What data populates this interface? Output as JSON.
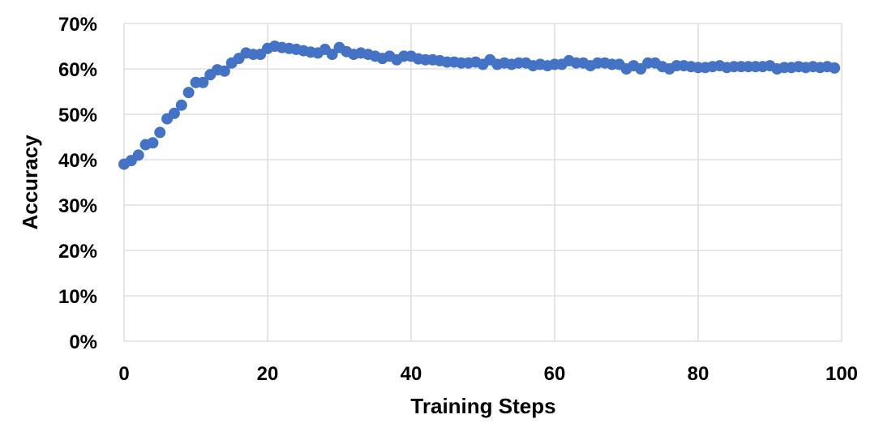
{
  "chart_data": {
    "type": "scatter",
    "xlabel": "Training Steps",
    "ylabel": "Accuracy",
    "xlim": [
      0,
      100
    ],
    "ylim": [
      0,
      0.7
    ],
    "x_ticks": [
      0,
      20,
      40,
      60,
      80,
      100
    ],
    "x_tick_labels": [
      "0",
      "20",
      "40",
      "60",
      "80",
      "100"
    ],
    "y_ticks": [
      0,
      0.1,
      0.2,
      0.3,
      0.4,
      0.5,
      0.6,
      0.7
    ],
    "y_tick_labels": [
      "0%",
      "10%",
      "20%",
      "30%",
      "40%",
      "50%",
      "60%",
      "70%"
    ],
    "grid": true,
    "marker_color": "#4472c4",
    "series": [
      {
        "x": [
          0,
          1,
          2,
          3,
          4,
          5,
          6,
          7,
          8,
          9,
          10,
          11,
          12,
          13,
          14,
          15,
          16,
          17,
          18,
          19,
          20,
          21,
          22,
          23,
          24,
          25,
          26,
          27,
          28,
          29,
          30,
          31,
          32,
          33,
          34,
          35,
          36,
          37,
          38,
          39,
          40,
          41,
          42,
          43,
          44,
          45,
          46,
          47,
          48,
          49,
          50,
          51,
          52,
          53,
          54,
          55,
          56,
          57,
          58,
          59,
          60,
          61,
          62,
          63,
          64,
          65,
          66,
          67,
          68,
          69,
          70,
          71,
          72,
          73,
          74,
          75,
          76,
          77,
          78,
          79,
          80,
          81,
          82,
          83,
          84,
          85,
          86,
          87,
          88,
          89,
          90,
          91,
          92,
          93,
          94,
          95,
          96,
          97,
          98,
          99
        ],
        "y": [
          0.39,
          0.398,
          0.41,
          0.433,
          0.437,
          0.46,
          0.49,
          0.502,
          0.52,
          0.548,
          0.57,
          0.57,
          0.587,
          0.598,
          0.595,
          0.613,
          0.623,
          0.635,
          0.632,
          0.632,
          0.645,
          0.65,
          0.647,
          0.645,
          0.643,
          0.64,
          0.637,
          0.635,
          0.643,
          0.632,
          0.647,
          0.638,
          0.632,
          0.635,
          0.632,
          0.628,
          0.623,
          0.628,
          0.62,
          0.628,
          0.628,
          0.622,
          0.62,
          0.62,
          0.618,
          0.615,
          0.615,
          0.613,
          0.613,
          0.615,
          0.61,
          0.62,
          0.61,
          0.613,
          0.61,
          0.613,
          0.613,
          0.607,
          0.61,
          0.607,
          0.61,
          0.61,
          0.618,
          0.613,
          0.613,
          0.607,
          0.613,
          0.613,
          0.61,
          0.61,
          0.6,
          0.607,
          0.6,
          0.613,
          0.613,
          0.605,
          0.6,
          0.607,
          0.607,
          0.605,
          0.603,
          0.603,
          0.605,
          0.607,
          0.603,
          0.605,
          0.605,
          0.605,
          0.605,
          0.605,
          0.607,
          0.6,
          0.603,
          0.603,
          0.605,
          0.603,
          0.605,
          0.603,
          0.605,
          0.602
        ]
      }
    ]
  }
}
